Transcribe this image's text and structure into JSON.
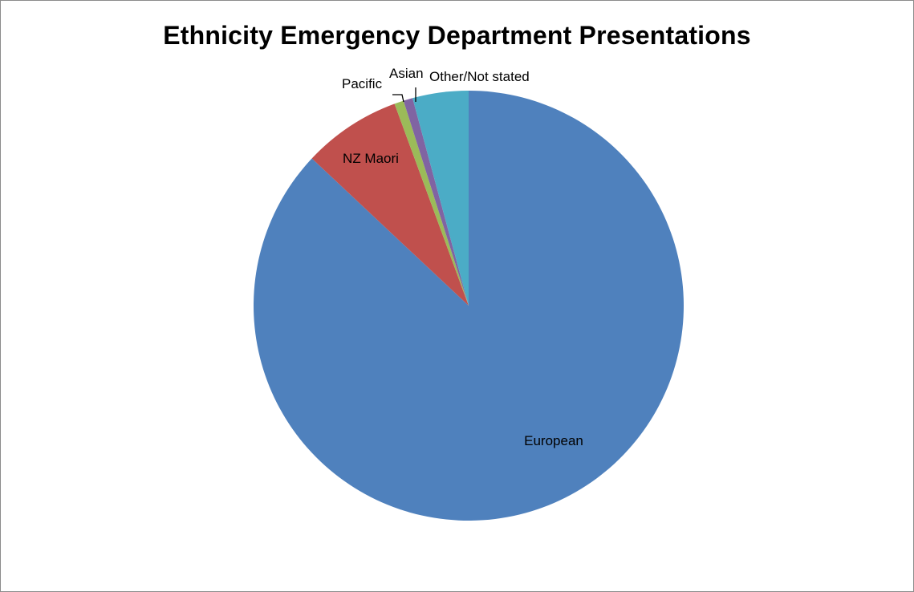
{
  "chart_data": {
    "type": "pie",
    "title": "Ethnicity Emergency Department Presentations",
    "slices": [
      {
        "label": "European",
        "value": 87.0,
        "color": "#4f81bd"
      },
      {
        "label": "NZ Maori",
        "value": 7.4,
        "color": "#c0504d"
      },
      {
        "label": "Pacific",
        "value": 0.7,
        "color": "#9bbb59"
      },
      {
        "label": "Asian",
        "value": 0.7,
        "color": "#8064a2"
      },
      {
        "label": "Other/Not stated",
        "value": 4.2,
        "color": "#4bacc6"
      }
    ],
    "start": "12 o'clock",
    "direction": "clockwise",
    "legend": "none"
  }
}
